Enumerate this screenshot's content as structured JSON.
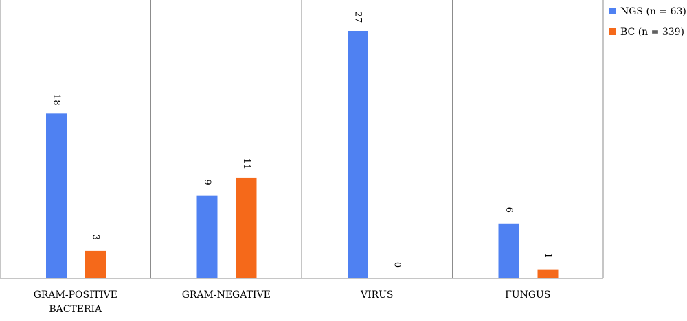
{
  "chart_data": {
    "type": "bar",
    "categories": [
      [
        "GRAM-POSITIVE",
        "BACTERIA"
      ],
      [
        "GRAM-NEGATIVE"
      ],
      [
        "VIRUS"
      ],
      [
        "FUNGUS"
      ]
    ],
    "series": [
      {
        "name": "NGS (n = 63)",
        "color": "#4f81f2",
        "values": [
          18,
          9,
          27,
          6
        ]
      },
      {
        "name": "BC (n = 339)",
        "color": "#f5691a",
        "values": [
          3,
          11,
          0,
          1
        ]
      }
    ],
    "ylim": [
      0,
      30
    ],
    "grid": "vertical category separators",
    "legend_position": "top-right",
    "data_label_orientation": "rotated"
  }
}
